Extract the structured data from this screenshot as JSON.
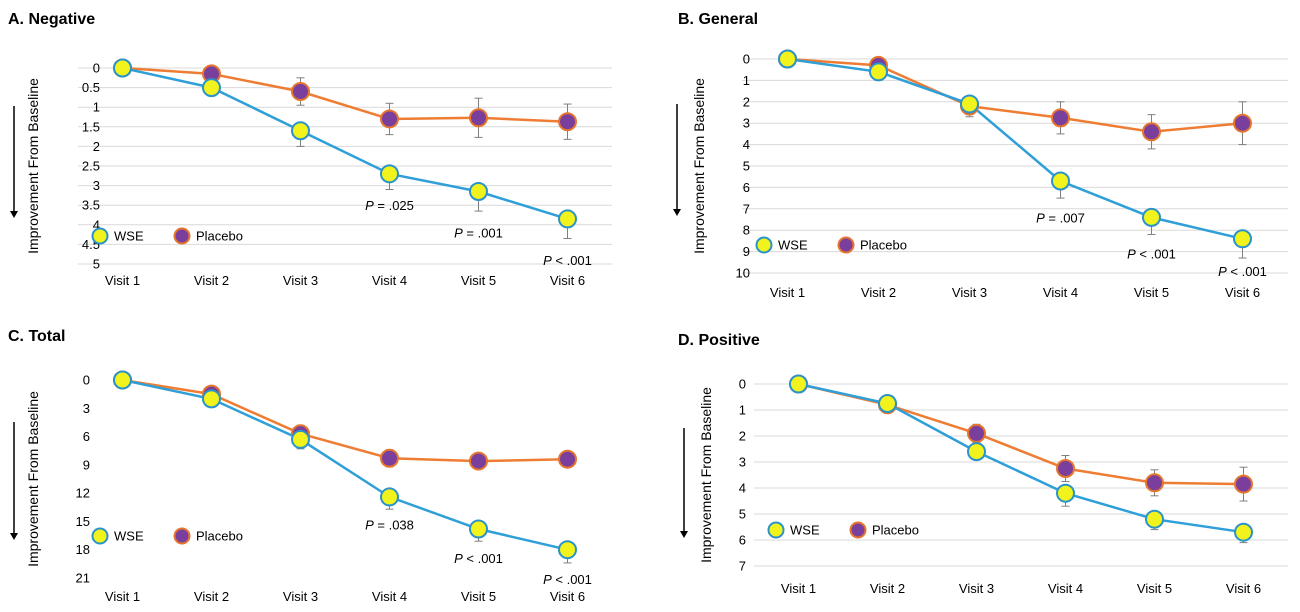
{
  "colors": {
    "wse_line": "#2f9fd8",
    "wse_marker": "#f2f21c",
    "wse_marker_edge": "#2a93c9",
    "placebo_line": "#ee7d33",
    "placebo_marker": "#7a3f9c",
    "placebo_marker_edge": "#e6752e",
    "grid": "#d9d9d9",
    "error_bar": "#7f7f7f"
  },
  "legend": {
    "wse": "WSE",
    "placebo": "Placebo"
  },
  "arrow_icon": "arrow-down-icon",
  "chart_data": [
    {
      "panel": "A",
      "title": "A. Negative",
      "type": "line",
      "ylabel": "Improvement  From Baseline",
      "categories": [
        "Visit 1",
        "Visit 2",
        "Visit 3",
        "Visit 4",
        "Visit 5",
        "Visit 6"
      ],
      "yticks": [
        "0",
        "0.5",
        "1",
        "1.5",
        "2",
        "2.5",
        "3",
        "3.5",
        "4",
        "4.5",
        "5"
      ],
      "ylim": [
        0,
        5
      ],
      "y_inverted": true,
      "grid": true,
      "legend_placement": "bottom-left",
      "series": [
        {
          "name": "WSE",
          "values": [
            0,
            0.5,
            1.6,
            2.7,
            3.15,
            3.85
          ],
          "error": [
            0,
            0.2,
            0.4,
            0.4,
            0.5,
            0.5
          ]
        },
        {
          "name": "Placebo",
          "values": [
            0,
            0.15,
            0.6,
            1.3,
            1.27,
            1.37
          ],
          "error": [
            0,
            0.1,
            0.35,
            0.4,
            0.5,
            0.45
          ]
        }
      ],
      "annotations": [
        {
          "x": "Visit 4",
          "y": 3.5,
          "p": "P",
          "rest": " = .025"
        },
        {
          "x": "Visit 5",
          "y": 4.2,
          "p": "P",
          "rest": " = .001"
        },
        {
          "x": "Visit 6",
          "y": 4.9,
          "p": "P",
          "rest": " < .001"
        }
      ]
    },
    {
      "panel": "B",
      "title": "B. General",
      "type": "line",
      "ylabel": "Improvement From Baseline",
      "categories": [
        "Visit 1",
        "Visit 2",
        "Visit 3",
        "Visit 4",
        "Visit 5",
        "Visit 6"
      ],
      "yticks": [
        "0",
        "1",
        "2",
        "3",
        "4",
        "5",
        "6",
        "7",
        "8",
        "9",
        "10"
      ],
      "ylim": [
        0,
        10
      ],
      "y_inverted": true,
      "grid": true,
      "legend_placement": "bottom-left",
      "series": [
        {
          "name": "WSE",
          "values": [
            0,
            0.6,
            2.1,
            5.7,
            7.4,
            8.4
          ],
          "error": [
            0,
            0.4,
            0.6,
            0.8,
            0.8,
            0.9
          ]
        },
        {
          "name": "Placebo",
          "values": [
            0,
            0.3,
            2.2,
            2.75,
            3.4,
            3.0
          ],
          "error": [
            0,
            0.3,
            0.4,
            0.75,
            0.8,
            1.0
          ]
        }
      ],
      "annotations": [
        {
          "x": "Visit 4",
          "y": 7.4,
          "p": "P",
          "rest": " = .007"
        },
        {
          "x": "Visit 5",
          "y": 9.1,
          "p": "P",
          "rest": " < .001"
        },
        {
          "x": "Visit 6",
          "y": 9.9,
          "p": "P",
          "rest": " < .001"
        }
      ]
    },
    {
      "panel": "C",
      "title": "C. Total",
      "type": "line",
      "ylabel": "Improvement  From Baseline",
      "categories": [
        "Visit 1",
        "Visit 2",
        "Visit 3",
        "Visit 4",
        "Visit 5",
        "Visit 6"
      ],
      "yticks": [
        "0",
        "3",
        "6",
        "9",
        "12",
        "15",
        "18",
        "21"
      ],
      "ylim": [
        0,
        21
      ],
      "y_inverted": true,
      "grid": false,
      "legend_placement": "bottom-left",
      "series": [
        {
          "name": "WSE",
          "values": [
            0,
            2.0,
            6.3,
            12.4,
            15.8,
            18.0
          ],
          "error": [
            0,
            0.6,
            1.0,
            1.3,
            1.3,
            1.4
          ]
        },
        {
          "name": "Placebo",
          "values": [
            0,
            1.5,
            5.7,
            8.3,
            8.6,
            8.4
          ],
          "error": [
            0,
            0.6,
            0.9,
            0.9,
            0.0,
            0.8
          ]
        }
      ],
      "annotations": [
        {
          "x": "Visit 4",
          "y": 15.3,
          "p": "P",
          "rest": " = .038"
        },
        {
          "x": "Visit 5",
          "y": 18.9,
          "p": "P",
          "rest": " < .001"
        },
        {
          "x": "Visit 6",
          "y": 21.1,
          "p": "P",
          "rest": " < .001"
        }
      ]
    },
    {
      "panel": "D",
      "title": "D. Positive",
      "type": "line",
      "ylabel": "Improvement From Baseline",
      "categories": [
        "Visit 1",
        "Visit 2",
        "Visit 3",
        "Visit 4",
        "Visit 5",
        "Visit 6"
      ],
      "yticks": [
        "0",
        "1",
        "2",
        "3",
        "4",
        "5",
        "6",
        "7"
      ],
      "ylim": [
        0,
        7
      ],
      "y_inverted": true,
      "grid": true,
      "legend_placement": "bottom-left",
      "series": [
        {
          "name": "WSE",
          "values": [
            0,
            0.75,
            2.6,
            4.2,
            5.2,
            5.7
          ],
          "error": [
            0,
            0.2,
            0.3,
            0.5,
            0.4,
            0.4
          ]
        },
        {
          "name": "Placebo",
          "values": [
            0,
            0.8,
            1.9,
            3.25,
            3.8,
            3.85
          ],
          "error": [
            0,
            0.2,
            0.35,
            0.5,
            0.5,
            0.65
          ]
        }
      ],
      "annotations": []
    }
  ]
}
